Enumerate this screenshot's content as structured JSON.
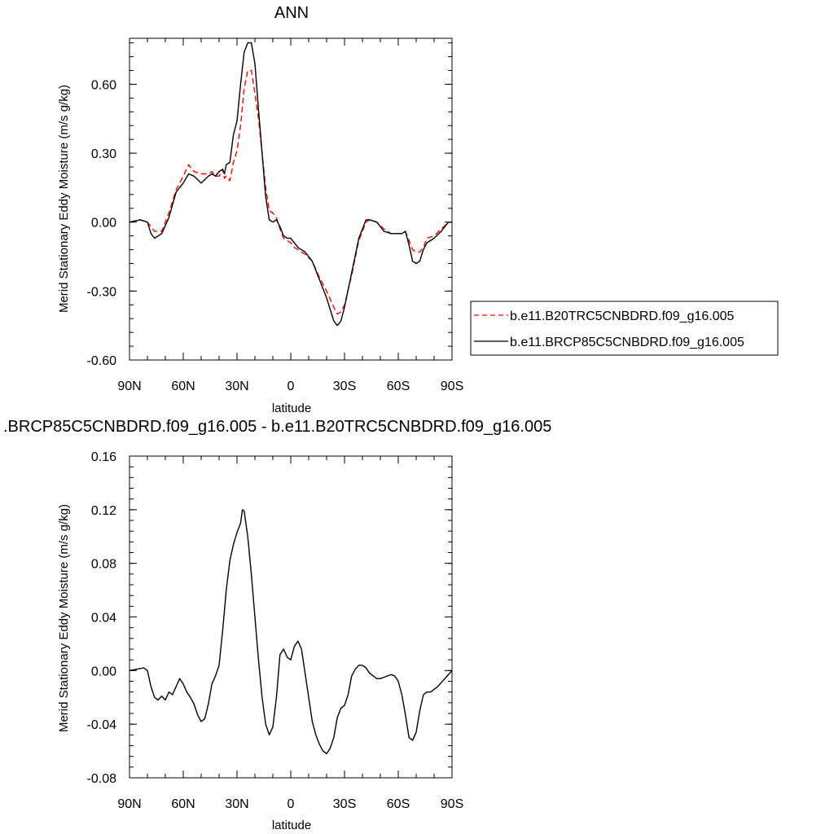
{
  "chart_data": [
    {
      "type": "line",
      "title": "ANN",
      "xlabel": "latitude",
      "ylabel": "Merid Stationary Eddy Moisture (m/s g/kg)",
      "xlim": [
        90,
        -90
      ],
      "ylim": [
        -0.6,
        0.8
      ],
      "grid": false,
      "legend_position": "right",
      "x_ticks": [
        90,
        60,
        30,
        0,
        -30,
        -60,
        -90
      ],
      "x_tick_labels": [
        "90N",
        "60N",
        "30N",
        "0",
        "30S",
        "60S",
        "90S"
      ],
      "y_ticks": [
        -0.6,
        -0.3,
        0.0,
        0.3,
        0.6
      ],
      "y_tick_labels": [
        "-0.60",
        "-0.30",
        "0.00",
        "0.30",
        "0.60"
      ],
      "series": [
        {
          "name": "b.e11.B20TRC5CNBDRD.f09_g16.005",
          "color": "#ff0000",
          "dash": "dashed",
          "x": [
            90,
            84,
            80,
            78,
            76,
            72,
            68,
            64,
            60,
            57,
            54,
            50,
            46,
            44,
            42,
            40,
            38,
            37,
            36,
            34,
            32,
            30,
            28,
            26,
            24,
            22,
            20,
            18,
            16,
            14,
            12,
            10,
            8,
            6,
            4,
            2,
            0,
            -2,
            -4,
            -8,
            -12,
            -16,
            -20,
            -24,
            -26,
            -28,
            -30,
            -34,
            -38,
            -42,
            -44,
            -48,
            -52,
            -56,
            -60,
            -62,
            -64,
            -66,
            -68,
            -70,
            -72,
            -74,
            -76,
            -80,
            -84,
            -88,
            -90
          ],
          "y": [
            0.0,
            0.01,
            0.0,
            -0.02,
            -0.04,
            -0.04,
            0.04,
            0.14,
            0.2,
            0.25,
            0.22,
            0.21,
            0.21,
            0.22,
            0.2,
            0.2,
            0.23,
            0.19,
            0.2,
            0.18,
            0.26,
            0.31,
            0.42,
            0.58,
            0.66,
            0.66,
            0.56,
            0.45,
            0.3,
            0.15,
            0.05,
            0.04,
            0.02,
            -0.03,
            -0.07,
            -0.08,
            -0.09,
            -0.11,
            -0.12,
            -0.14,
            -0.17,
            -0.24,
            -0.3,
            -0.37,
            -0.4,
            -0.39,
            -0.36,
            -0.23,
            -0.08,
            0.0,
            0.01,
            0.0,
            -0.03,
            -0.05,
            -0.05,
            -0.05,
            -0.04,
            -0.08,
            -0.12,
            -0.13,
            -0.13,
            -0.11,
            -0.07,
            -0.06,
            -0.03,
            0.0,
            0.0
          ]
        },
        {
          "name": "b.e11.BRCP85C5CNBDRD.f09_g16.005",
          "color": "#000000",
          "dash": "solid",
          "x": [
            90,
            84,
            80,
            78,
            76,
            72,
            68,
            64,
            60,
            57,
            54,
            50,
            46,
            44,
            42,
            40,
            38,
            37,
            36,
            34,
            32,
            30,
            28,
            26,
            24,
            22,
            20,
            18,
            16,
            14,
            12,
            10,
            8,
            6,
            4,
            2,
            0,
            -2,
            -4,
            -8,
            -12,
            -16,
            -20,
            -24,
            -26,
            -28,
            -30,
            -34,
            -38,
            -42,
            -44,
            -48,
            -52,
            -56,
            -60,
            -62,
            -64,
            -66,
            -68,
            -70,
            -72,
            -74,
            -76,
            -80,
            -84,
            -88,
            -90
          ],
          "y": [
            0.0,
            0.01,
            0.0,
            -0.05,
            -0.07,
            -0.05,
            0.02,
            0.13,
            0.17,
            0.21,
            0.2,
            0.17,
            0.2,
            0.21,
            0.2,
            0.22,
            0.23,
            0.21,
            0.25,
            0.26,
            0.38,
            0.44,
            0.6,
            0.74,
            0.78,
            0.78,
            0.69,
            0.49,
            0.3,
            0.11,
            0.01,
            0.0,
            0.01,
            -0.02,
            -0.06,
            -0.07,
            -0.07,
            -0.09,
            -0.11,
            -0.13,
            -0.17,
            -0.25,
            -0.33,
            -0.43,
            -0.45,
            -0.43,
            -0.37,
            -0.22,
            -0.07,
            0.01,
            0.01,
            0.0,
            -0.04,
            -0.05,
            -0.05,
            -0.05,
            -0.04,
            -0.1,
            -0.17,
            -0.18,
            -0.17,
            -0.12,
            -0.09,
            -0.07,
            -0.04,
            0.0,
            0.0
          ]
        }
      ]
    },
    {
      "type": "line",
      "title": ".BRCP85C5CNBDRD.f09_g16.005 - b.e11.B20TRC5CNBDRD.f09_g16.005",
      "xlabel": "latitude",
      "ylabel": "Merid Stationary Eddy Moisture (m/s g/kg)",
      "xlim": [
        90,
        -90
      ],
      "ylim": [
        -0.08,
        0.16
      ],
      "grid": false,
      "x_ticks": [
        90,
        60,
        30,
        0,
        -30,
        -60,
        -90
      ],
      "x_tick_labels": [
        "90N",
        "60N",
        "30N",
        "0",
        "30S",
        "60S",
        "90S"
      ],
      "y_ticks": [
        -0.08,
        -0.04,
        0.0,
        0.04,
        0.08,
        0.12,
        0.16
      ],
      "y_tick_labels": [
        "-0.08",
        "-0.04",
        "0.00",
        "0.04",
        "0.08",
        "0.12",
        "0.16"
      ],
      "series": [
        {
          "color": "#000000",
          "dash": "solid",
          "x": [
            90,
            86,
            82,
            80,
            78,
            76,
            74,
            72,
            70,
            68,
            66,
            64,
            62,
            60,
            58,
            56,
            54,
            52,
            50,
            48,
            46,
            44,
            42,
            40,
            38,
            36,
            34,
            32,
            30,
            28,
            27,
            26,
            24,
            22,
            20,
            18,
            16,
            14,
            12,
            10,
            8,
            6,
            4,
            2,
            0,
            -2,
            -4,
            -6,
            -8,
            -10,
            -12,
            -14,
            -16,
            -18,
            -20,
            -22,
            -24,
            -26,
            -28,
            -30,
            -32,
            -34,
            -36,
            -38,
            -40,
            -42,
            -44,
            -46,
            -48,
            -50,
            -52,
            -54,
            -56,
            -58,
            -60,
            -62,
            -64,
            -66,
            -68,
            -70,
            -72,
            -74,
            -76,
            -78,
            -80,
            -82,
            -84,
            -86,
            -88,
            -90
          ],
          "y": [
            0.0,
            0.001,
            0.002,
            0.0,
            -0.012,
            -0.02,
            -0.022,
            -0.019,
            -0.022,
            -0.016,
            -0.018,
            -0.012,
            -0.006,
            -0.01,
            -0.016,
            -0.02,
            -0.025,
            -0.033,
            -0.038,
            -0.036,
            -0.025,
            -0.01,
            -0.004,
            0.004,
            0.03,
            0.06,
            0.082,
            0.094,
            0.103,
            0.11,
            0.12,
            0.119,
            0.1,
            0.072,
            0.04,
            0.008,
            -0.02,
            -0.04,
            -0.048,
            -0.042,
            -0.02,
            0.012,
            0.016,
            0.01,
            0.008,
            0.018,
            0.022,
            0.016,
            -0.002,
            -0.02,
            -0.038,
            -0.048,
            -0.055,
            -0.06,
            -0.062,
            -0.058,
            -0.05,
            -0.035,
            -0.028,
            -0.026,
            -0.018,
            -0.004,
            0.001,
            0.004,
            0.004,
            0.002,
            -0.002,
            -0.004,
            -0.006,
            -0.006,
            -0.005,
            -0.004,
            -0.003,
            -0.004,
            -0.008,
            -0.018,
            -0.033,
            -0.05,
            -0.052,
            -0.046,
            -0.03,
            -0.018,
            -0.016,
            -0.016,
            -0.014,
            -0.012,
            -0.009,
            -0.006,
            -0.003,
            0.0
          ]
        }
      ]
    }
  ]
}
